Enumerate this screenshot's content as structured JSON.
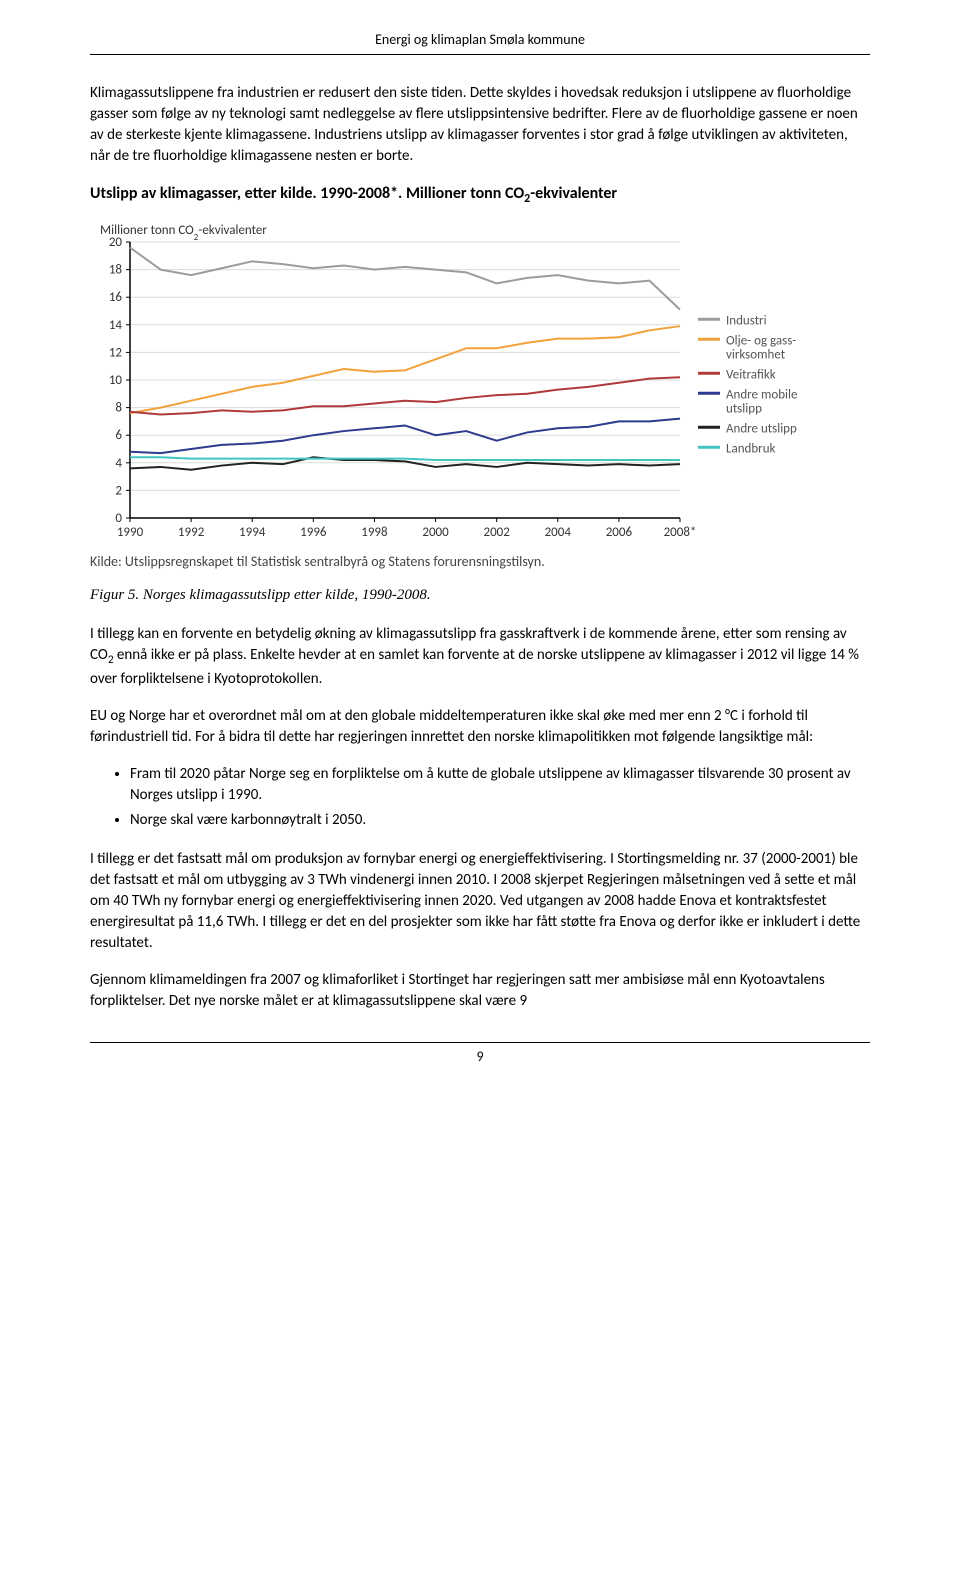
{
  "page": {
    "header": "Energi og klimaplan Smøla kommune",
    "page_number": "9"
  },
  "text": {
    "p1": "Klimagassutslippene fra industrien er redusert den siste tiden. Dette skyldes i hovedsak reduksjon i utslippene av fluorholdige gasser som følge av ny teknologi samt nedleggelse av flere utslippsintensive bedrifter. Flere av de fluorholdige gassene er noen av de sterkeste kjente klimagassene. Industriens utslipp av klimagasser forventes i stor grad å følge utviklingen av aktiviteten, når de tre fluorholdige klimagassene nesten er borte.",
    "chart_title_a": "Utslipp av klimagasser, etter kilde. 1990-2008*. Millioner tonn CO",
    "chart_title_b": "-ekvivalenter",
    "chart_source": "Kilde: Utslippsregnskapet til Statistisk sentralbyrå og Statens forurensningstilsyn.",
    "figure_caption": "Figur 5. Norges klimagassutslipp etter kilde, 1990-2008.",
    "p2a": "I tillegg kan en forvente en betydelig økning av klimagassutslipp fra gasskraftverk i de kommende årene, etter som rensing av CO",
    "p2b": " ennå ikke er på plass. Enkelte hevder at en samlet kan forvente at de norske utslippene av klimagasser i 2012 vil ligge 14 % over forpliktelsene i Kyotoprotokollen.",
    "p3": "EU og Norge har et overordnet mål om at den globale middeltemperaturen ikke skal øke med mer enn 2 °C i forhold til førindustriell tid. For å bidra til dette har regjeringen innrettet den norske klimapolitikken mot følgende langsiktige mål:",
    "b1": "Fram til 2020 påtar Norge seg en forpliktelse om å kutte de globale utslippene av klimagasser tilsvarende 30 prosent av Norges utslipp i 1990.",
    "b2": "Norge skal være karbonnøytralt i 2050.",
    "p4": "I tillegg er det fastsatt mål om produksjon av fornybar energi og energieffektivisering. I Stortingsmelding nr. 37 (2000-2001) ble det fastsatt et mål om utbygging av 3 TWh vindenergi innen 2010. I 2008 skjerpet Regjeringen målsetningen ved å sette et mål om 40 TWh ny fornybar energi og energieffektivisering innen 2020. Ved utgangen av 2008 hadde Enova et kontraktsfestet energiresultat på 11,6 TWh. I tillegg er det en del prosjekter som ikke har fått støtte fra Enova og derfor ikke er inkludert i dette resultatet.",
    "p5": "Gjennom klimameldingen fra 2007 og klimaforliket i Stortinget har regjeringen satt mer ambisiøse mål enn Kyotoavtalens forpliktelser. Det nye norske målet er at klimagassutslippene skal være 9"
  },
  "chart": {
    "type": "line",
    "y_axis_label_a": "Millioner tonn CO",
    "y_axis_label_b": "-ekvivalenter",
    "xlim": [
      1990,
      2008
    ],
    "ylim": [
      0,
      20
    ],
    "ytick_step": 2,
    "xtick_step": 2,
    "x_last_label": "2008*",
    "background_color": "#ffffff",
    "grid_color": "#dcdcdc",
    "axis_color": "#000000",
    "line_width": 2,
    "axis_fontsize": 13,
    "title_fontsize": 16,
    "series": [
      {
        "name": "Industri",
        "color": "#9c9c9c",
        "values": [
          19.6,
          18.0,
          17.6,
          18.1,
          18.6,
          18.4,
          18.1,
          18.3,
          18.0,
          18.2,
          18.0,
          17.8,
          17.0,
          17.4,
          17.6,
          17.2,
          17.0,
          17.2,
          15.1
        ]
      },
      {
        "name": "Olje- og gass-\nvirksomhet",
        "color": "#f2a23a",
        "values": [
          7.6,
          8.0,
          8.5,
          9.0,
          9.5,
          9.8,
          10.3,
          10.8,
          10.6,
          10.7,
          11.5,
          12.3,
          12.3,
          12.7,
          13.0,
          13.0,
          13.1,
          13.6,
          13.9
        ]
      },
      {
        "name": "Veitrafikk",
        "color": "#b03a3a",
        "values": [
          7.7,
          7.5,
          7.6,
          7.8,
          7.7,
          7.8,
          8.1,
          8.1,
          8.3,
          8.5,
          8.4,
          8.7,
          8.9,
          9.0,
          9.3,
          9.5,
          9.8,
          10.1,
          10.2
        ]
      },
      {
        "name": "Andre mobile\nutslipp",
        "color": "#2e3a8e",
        "values": [
          4.8,
          4.7,
          5.0,
          5.3,
          5.4,
          5.6,
          6.0,
          6.3,
          6.5,
          6.7,
          6.0,
          6.3,
          5.6,
          6.2,
          6.5,
          6.6,
          7.0,
          7.0,
          7.2
        ]
      },
      {
        "name": "Andre utslipp",
        "color": "#222222",
        "values": [
          3.6,
          3.7,
          3.5,
          3.8,
          4.0,
          3.9,
          4.4,
          4.2,
          4.2,
          4.1,
          3.7,
          3.9,
          3.7,
          4.0,
          3.9,
          3.8,
          3.9,
          3.8,
          3.9
        ]
      },
      {
        "name": "Landbruk",
        "color": "#44c3c3",
        "values": [
          4.4,
          4.4,
          4.3,
          4.3,
          4.3,
          4.3,
          4.3,
          4.3,
          4.3,
          4.3,
          4.2,
          4.2,
          4.2,
          4.2,
          4.2,
          4.2,
          4.2,
          4.2,
          4.2
        ]
      }
    ]
  }
}
